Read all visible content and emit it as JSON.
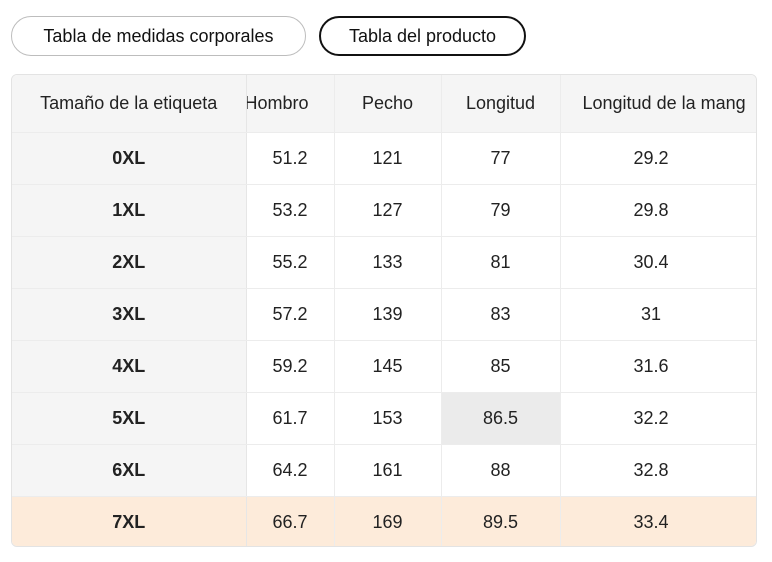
{
  "tabs": {
    "body_chart_label": "Tabla de medidas corporales",
    "product_chart_label": "Tabla del producto"
  },
  "table": {
    "headers": {
      "size": "Tamaño de la etiqueta",
      "shoulder": "Hombro",
      "chest": "Pecho",
      "length": "Longitud",
      "sleeve": "Longitud de la mang"
    },
    "rows": [
      {
        "size": "0XL",
        "shoulder": "51.2",
        "chest": "121",
        "length": "77",
        "sleeve": "29.2"
      },
      {
        "size": "1XL",
        "shoulder": "53.2",
        "chest": "127",
        "length": "79",
        "sleeve": "29.8"
      },
      {
        "size": "2XL",
        "shoulder": "55.2",
        "chest": "133",
        "length": "81",
        "sleeve": "30.4"
      },
      {
        "size": "3XL",
        "shoulder": "57.2",
        "chest": "139",
        "length": "83",
        "sleeve": "31"
      },
      {
        "size": "4XL",
        "shoulder": "59.2",
        "chest": "145",
        "length": "85",
        "sleeve": "31.6"
      },
      {
        "size": "5XL",
        "shoulder": "61.7",
        "chest": "153",
        "length": "86.5",
        "sleeve": "32.2"
      },
      {
        "size": "6XL",
        "shoulder": "64.2",
        "chest": "161",
        "length": "88",
        "sleeve": "32.8"
      },
      {
        "size": "7XL",
        "shoulder": "66.7",
        "chest": "169",
        "length": "89.5",
        "sleeve": "33.4"
      }
    ]
  },
  "colors": {
    "highlight_row": "#fdebda",
    "hover_cell": "#ebebeb",
    "size_column_bg": "#f5f5f5"
  }
}
